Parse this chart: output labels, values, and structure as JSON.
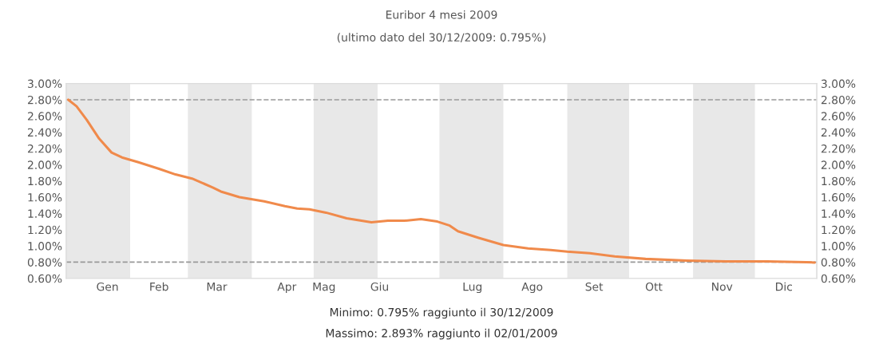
{
  "chart_data": {
    "type": "line",
    "title": "Euribor 4 mesi 2009",
    "subtitle": "(ultimo dato del 30/12/2009: 0.795%)",
    "x": [
      "2009-01-02",
      "2009-01-06",
      "2009-01-11",
      "2009-01-17",
      "2009-01-23",
      "2009-01-28",
      "2009-02-05",
      "2009-02-15",
      "2009-02-23",
      "2009-03-03",
      "2009-03-13",
      "2009-03-17",
      "2009-03-26",
      "2009-04-07",
      "2009-04-17",
      "2009-04-23",
      "2009-04-29",
      "2009-05-07",
      "2009-05-17",
      "2009-05-29",
      "2009-06-06",
      "2009-06-14",
      "2009-06-22",
      "2009-06-30",
      "2009-07-06",
      "2009-07-10",
      "2009-07-20",
      "2009-08-01",
      "2009-08-13",
      "2009-08-24",
      "2009-09-01",
      "2009-09-12",
      "2009-09-24",
      "2009-10-09",
      "2009-10-29",
      "2009-11-17",
      "2009-12-07",
      "2009-12-26",
      "2009-12-30"
    ],
    "series": [
      {
        "color": "#f08a4b",
        "values": [
          2.8,
          2.72,
          2.55,
          2.32,
          2.15,
          2.09,
          2.03,
          1.95,
          1.88,
          1.83,
          1.72,
          1.67,
          1.6,
          1.55,
          1.49,
          1.46,
          1.45,
          1.41,
          1.34,
          1.29,
          1.31,
          1.31,
          1.33,
          1.3,
          1.25,
          1.18,
          1.1,
          1.01,
          0.97,
          0.95,
          0.93,
          0.91,
          0.87,
          0.84,
          0.82,
          0.81,
          0.81,
          0.8,
          0.795
        ]
      }
    ],
    "xlim": [
      "2009-01-01",
      "2009-12-31"
    ],
    "xticks": [
      {
        "value": "2009-01-21",
        "label": "Gen"
      },
      {
        "value": "2009-02-15",
        "label": "Feb"
      },
      {
        "value": "2009-03-15",
        "label": "Mar"
      },
      {
        "value": "2009-04-18",
        "label": "Apr"
      },
      {
        "value": "2009-05-06",
        "label": "Mag"
      },
      {
        "value": "2009-06-02",
        "label": "Giu"
      },
      {
        "value": "2009-07-17",
        "label": "Lug"
      },
      {
        "value": "2009-08-15",
        "label": "Ago"
      },
      {
        "value": "2009-09-14",
        "label": "Set"
      },
      {
        "value": "2009-10-13",
        "label": "Ott"
      },
      {
        "value": "2009-11-15",
        "label": "Nov"
      },
      {
        "value": "2009-12-15",
        "label": "Dic"
      }
    ],
    "ylim": [
      0.6,
      3.0
    ],
    "yticks": [
      {
        "value": 0.6,
        "label": "0.60%"
      },
      {
        "value": 0.8,
        "label": "0.80%"
      },
      {
        "value": 1.0,
        "label": "1.00%"
      },
      {
        "value": 1.2,
        "label": "1.20%"
      },
      {
        "value": 1.4,
        "label": "1.40%"
      },
      {
        "value": 1.6,
        "label": "1.60%"
      },
      {
        "value": 1.8,
        "label": "1.80%"
      },
      {
        "value": 2.0,
        "label": "2.00%"
      },
      {
        "value": 2.2,
        "label": "2.20%"
      },
      {
        "value": 2.4,
        "label": "2.40%"
      },
      {
        "value": 2.6,
        "label": "2.60%"
      },
      {
        "value": 2.8,
        "label": "2.80%"
      },
      {
        "value": 3.0,
        "label": "3.00%"
      }
    ],
    "y2lim": [
      0.6,
      3.0
    ],
    "y2ticks": [
      {
        "value": 0.6,
        "label": "0.60%"
      },
      {
        "value": 0.8,
        "label": "0.80%"
      },
      {
        "value": 1.0,
        "label": "1.00%"
      },
      {
        "value": 1.2,
        "label": "1.20%"
      },
      {
        "value": 1.4,
        "label": "1.40%"
      },
      {
        "value": 1.6,
        "label": "1.60%"
      },
      {
        "value": 1.8,
        "label": "1.80%"
      },
      {
        "value": 2.0,
        "label": "2.00%"
      },
      {
        "value": 2.2,
        "label": "2.20%"
      },
      {
        "value": 2.4,
        "label": "2.40%"
      },
      {
        "value": 2.6,
        "label": "2.60%"
      },
      {
        "value": 2.8,
        "label": "2.80%"
      },
      {
        "value": 3.0,
        "label": "3.00%"
      }
    ],
    "ref_lines": [
      {
        "axis": "y",
        "value": 2.8,
        "color": "#999999",
        "line_style": "dashed"
      },
      {
        "axis": "y",
        "value": 0.8,
        "color": "#999999",
        "line_style": "dashed"
      }
    ],
    "bands": [
      {
        "axis": "x",
        "from": "2009-01-01",
        "to": "2009-02-01",
        "color": "#e8e8e8"
      },
      {
        "axis": "x",
        "from": "2009-03-01",
        "to": "2009-04-01",
        "color": "#e8e8e8"
      },
      {
        "axis": "x",
        "from": "2009-05-01",
        "to": "2009-06-01",
        "color": "#e8e8e8"
      },
      {
        "axis": "x",
        "from": "2009-07-01",
        "to": "2009-08-01",
        "color": "#e8e8e8"
      },
      {
        "axis": "x",
        "from": "2009-09-01",
        "to": "2009-10-01",
        "color": "#e8e8e8"
      },
      {
        "axis": "x",
        "from": "2009-11-01",
        "to": "2009-12-01",
        "color": "#e8e8e8"
      }
    ],
    "annotations": [
      "Minimo: 0.795% raggiunto il 30/12/2009",
      "Massimo: 2.893% raggiunto il 02/01/2009"
    ],
    "grid": false,
    "marker": "none",
    "line_style": "solid"
  }
}
